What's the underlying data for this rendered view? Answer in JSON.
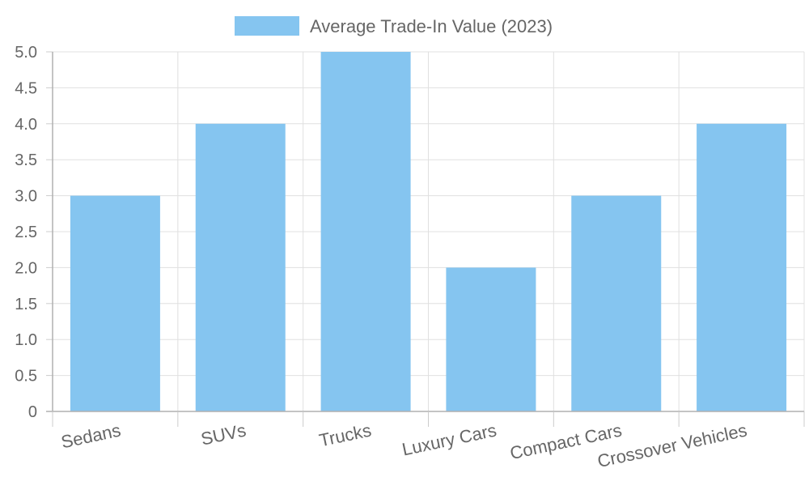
{
  "chart_data": {
    "type": "bar",
    "categories": [
      "Sedans",
      "SUVs",
      "Trucks",
      "Luxury Cars",
      "Compact Cars",
      "Crossover Vehicles"
    ],
    "series": [
      {
        "name": "Average Trade-In Value (2023)",
        "values": [
          3,
          4,
          5,
          2,
          3,
          4
        ],
        "color": "#85c5f0"
      }
    ],
    "ylim": [
      0,
      5
    ],
    "yticks": [
      "0",
      "0.5",
      "1.0",
      "1.5",
      "2.0",
      "2.5",
      "3.0",
      "3.5",
      "4.0",
      "4.5",
      "5.0"
    ],
    "grid": true,
    "legend": "top-center"
  }
}
